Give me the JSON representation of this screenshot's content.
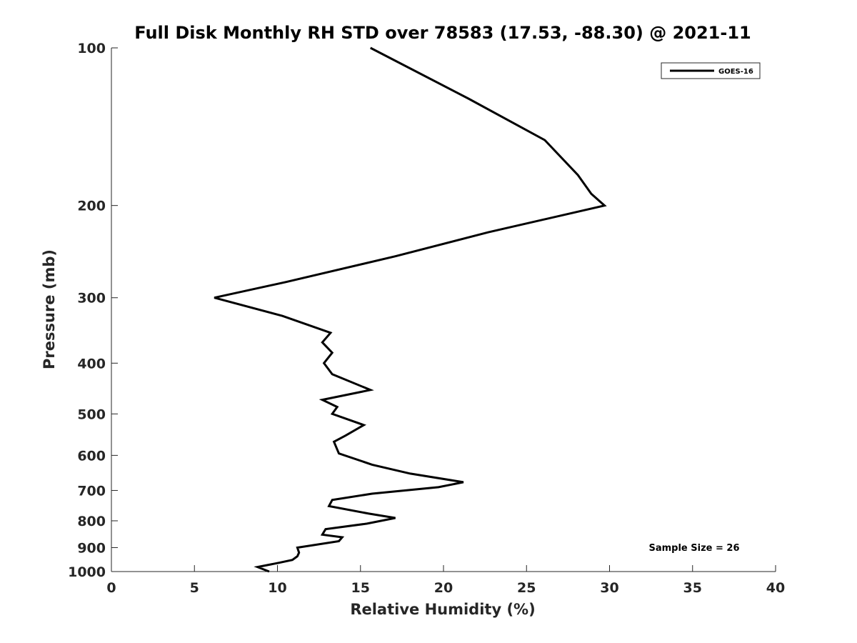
{
  "chart_data": {
    "type": "line",
    "title": "Full Disk Monthly RH STD over 78583 (17.53, -88.30) @ 2021-11",
    "xlabel": "Relative Humidity (%)",
    "ylabel": "Pressure (mb)",
    "xlim": [
      0,
      40
    ],
    "ylim": [
      100,
      1000
    ],
    "y_scale": "log",
    "y_reversed": true,
    "x_ticks": [
      0,
      5,
      10,
      15,
      20,
      25,
      30,
      35,
      40
    ],
    "x_tick_labels": [
      "0",
      "5",
      "10",
      "15",
      "20",
      "25",
      "30",
      "35",
      "40"
    ],
    "y_ticks": [
      100,
      200,
      300,
      400,
      500,
      600,
      700,
      800,
      900,
      1000
    ],
    "y_tick_labels": [
      "100",
      "200",
      "300",
      "400",
      "500",
      "600",
      "700",
      "800",
      "900",
      "1000"
    ],
    "grid": false,
    "legend_position": "top-right",
    "series": [
      {
        "name": "GOES-16",
        "color": "#000000",
        "points": [
          [
            15.6,
            100
          ],
          [
            21.5,
            125
          ],
          [
            26.1,
            150
          ],
          [
            28.1,
            175
          ],
          [
            28.9,
            190
          ],
          [
            29.7,
            200
          ],
          [
            22.7,
            225
          ],
          [
            17.1,
            250
          ],
          [
            10.5,
            280
          ],
          [
            6.2,
            300
          ],
          [
            10.3,
            325
          ],
          [
            13.2,
            350
          ],
          [
            12.7,
            365
          ],
          [
            13.3,
            382
          ],
          [
            12.8,
            400
          ],
          [
            13.3,
            420
          ],
          [
            15.6,
            450
          ],
          [
            12.7,
            470
          ],
          [
            13.6,
            485
          ],
          [
            13.3,
            500
          ],
          [
            15.2,
            525
          ],
          [
            14.1,
            550
          ],
          [
            13.4,
            565
          ],
          [
            13.7,
            595
          ],
          [
            15.7,
            625
          ],
          [
            18.0,
            650
          ],
          [
            21.2,
            675
          ],
          [
            19.7,
            690
          ],
          [
            15.7,
            710
          ],
          [
            13.3,
            730
          ],
          [
            13.1,
            750
          ],
          [
            15.5,
            775
          ],
          [
            17.1,
            790
          ],
          [
            15.4,
            810
          ],
          [
            12.9,
            830
          ],
          [
            12.7,
            850
          ],
          [
            13.9,
            860
          ],
          [
            13.7,
            875
          ],
          [
            11.2,
            900
          ],
          [
            11.3,
            920
          ],
          [
            11.2,
            935
          ],
          [
            10.9,
            950
          ],
          [
            10.1,
            962
          ],
          [
            8.8,
            980
          ],
          [
            9.5,
            1000
          ]
        ]
      }
    ],
    "annotations": [
      "Sample Size = 26"
    ]
  }
}
